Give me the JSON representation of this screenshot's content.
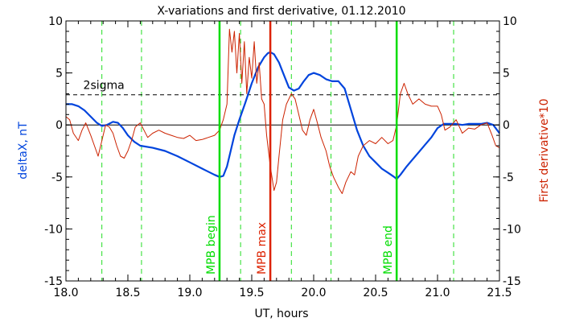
{
  "chart_data": {
    "type": "line",
    "title": "X-variations and first derivative, 01.12.2010",
    "xlabel": "UT, hours",
    "ylabel_left": "deltaX, nT",
    "ylabel_right": "First derivative*10",
    "xlim": [
      18.0,
      21.5
    ],
    "ylim": [
      -15,
      10
    ],
    "x_ticks": [
      "18.0",
      "18.5",
      "19.0",
      "19.5",
      "20.0",
      "20.5",
      "21.0",
      "21.5"
    ],
    "x_tick_values": [
      18.0,
      18.5,
      19.0,
      19.5,
      20.0,
      20.5,
      21.0,
      21.5
    ],
    "y_ticks": [
      "10",
      "5",
      "0",
      "-5",
      "-10",
      "-15"
    ],
    "y_tick_values": [
      10,
      5,
      0,
      -5,
      -10,
      -15
    ],
    "sigma_level": 2.9,
    "sigma_label": "2sigma",
    "vertical_markers": [
      {
        "x": 19.24,
        "label": "MPB begin",
        "color": "#00dd00"
      },
      {
        "x": 19.65,
        "label": "MPB max",
        "color": "#dd2200"
      },
      {
        "x": 20.67,
        "label": "MPB end",
        "color": "#00dd00"
      }
    ],
    "dashed_verticals": [
      18.29,
      18.61,
      19.41,
      19.82,
      20.14,
      21.13
    ],
    "series": [
      {
        "color": "#0044dd",
        "x": [
          18.0,
          18.05,
          18.1,
          18.15,
          18.2,
          18.25,
          18.29,
          18.33,
          18.38,
          18.42,
          18.46,
          18.5,
          18.55,
          18.6,
          18.7,
          18.8,
          18.9,
          19.0,
          19.1,
          19.2,
          19.24,
          19.27,
          19.3,
          19.33,
          19.36,
          19.4,
          19.45,
          19.5,
          19.55,
          19.6,
          19.63,
          19.65,
          19.68,
          19.72,
          19.76,
          19.8,
          19.84,
          19.88,
          19.92,
          19.96,
          20.0,
          20.05,
          20.1,
          20.15,
          20.2,
          20.25,
          20.3,
          20.35,
          20.4,
          20.45,
          20.5,
          20.55,
          20.6,
          20.65,
          20.67,
          20.7,
          20.75,
          20.8,
          20.85,
          20.9,
          20.95,
          21.0,
          21.05,
          21.1,
          21.15,
          21.2,
          21.25,
          21.3,
          21.35,
          21.4,
          21.45,
          21.5
        ],
        "values": [
          2.0,
          2.0,
          1.8,
          1.4,
          0.8,
          0.2,
          -0.1,
          0.0,
          0.3,
          0.2,
          -0.3,
          -1.0,
          -1.6,
          -2.0,
          -2.2,
          -2.5,
          -3.0,
          -3.6,
          -4.2,
          -4.8,
          -5.0,
          -4.9,
          -4.0,
          -2.5,
          -1.0,
          0.5,
          2.2,
          4.0,
          5.5,
          6.5,
          6.9,
          7.0,
          6.8,
          6.0,
          4.8,
          3.6,
          3.3,
          3.5,
          4.2,
          4.8,
          5.0,
          4.8,
          4.4,
          4.2,
          4.2,
          3.5,
          1.5,
          -0.5,
          -2.0,
          -3.0,
          -3.6,
          -4.2,
          -4.6,
          -5.0,
          -5.2,
          -4.8,
          -4.0,
          -3.3,
          -2.6,
          -1.9,
          -1.2,
          -0.3,
          0.1,
          0.1,
          0.1,
          0.0,
          0.1,
          0.1,
          0.1,
          0.2,
          0.0,
          -0.8
        ]
      },
      {
        "color": "#cc2200",
        "x": [
          18.0,
          18.03,
          18.06,
          18.1,
          18.13,
          18.16,
          18.2,
          18.23,
          18.26,
          18.29,
          18.32,
          18.35,
          18.38,
          18.41,
          18.44,
          18.47,
          18.5,
          18.53,
          18.56,
          18.6,
          18.63,
          18.66,
          18.7,
          18.75,
          18.8,
          18.85,
          18.9,
          18.95,
          19.0,
          19.05,
          19.1,
          19.15,
          19.2,
          19.24,
          19.27,
          19.3,
          19.32,
          19.34,
          19.36,
          19.38,
          19.4,
          19.42,
          19.44,
          19.46,
          19.48,
          19.5,
          19.52,
          19.54,
          19.56,
          19.58,
          19.6,
          19.62,
          19.65,
          19.68,
          19.7,
          19.72,
          19.75,
          19.78,
          19.8,
          19.82,
          19.85,
          19.88,
          19.91,
          19.94,
          19.97,
          20.0,
          20.03,
          20.06,
          20.1,
          20.13,
          20.16,
          20.2,
          20.23,
          20.26,
          20.3,
          20.33,
          20.36,
          20.4,
          20.45,
          20.5,
          20.55,
          20.6,
          20.64,
          20.67,
          20.7,
          20.73,
          20.76,
          20.8,
          20.85,
          20.9,
          20.95,
          21.0,
          21.03,
          21.06,
          21.1,
          21.15,
          21.2,
          21.25,
          21.3,
          21.35,
          21.4,
          21.44,
          21.47,
          21.5
        ],
        "values": [
          0.8,
          0.5,
          -0.8,
          -1.5,
          -0.5,
          0.2,
          -1.0,
          -2.0,
          -3.0,
          -1.5,
          0.0,
          -0.2,
          -0.8,
          -2.0,
          -3.0,
          -3.2,
          -2.5,
          -1.5,
          -0.2,
          0.2,
          -0.5,
          -1.2,
          -0.8,
          -0.5,
          -0.8,
          -1.0,
          -1.2,
          -1.3,
          -1.0,
          -1.5,
          -1.4,
          -1.2,
          -1.0,
          -0.5,
          0.5,
          2.0,
          9.2,
          7.0,
          9.0,
          5.0,
          8.8,
          4.0,
          8.0,
          3.0,
          6.5,
          4.5,
          8.0,
          4.0,
          6.0,
          2.5,
          2.0,
          -1.0,
          -4.0,
          -6.3,
          -5.5,
          -3.0,
          0.5,
          2.0,
          2.5,
          3.0,
          2.5,
          1.0,
          -0.5,
          -1.0,
          0.5,
          1.5,
          0.2,
          -1.2,
          -2.5,
          -4.0,
          -5.0,
          -6.0,
          -6.6,
          -5.5,
          -4.5,
          -4.8,
          -3.0,
          -2.0,
          -1.5,
          -1.8,
          -1.2,
          -1.8,
          -1.5,
          0.0,
          3.0,
          4.0,
          3.0,
          2.0,
          2.5,
          2.0,
          1.8,
          1.8,
          1.0,
          -0.5,
          -0.2,
          0.5,
          -0.8,
          -0.3,
          -0.4,
          0.0,
          0.2,
          -1.0,
          -2.0,
          -2.2
        ]
      }
    ]
  }
}
